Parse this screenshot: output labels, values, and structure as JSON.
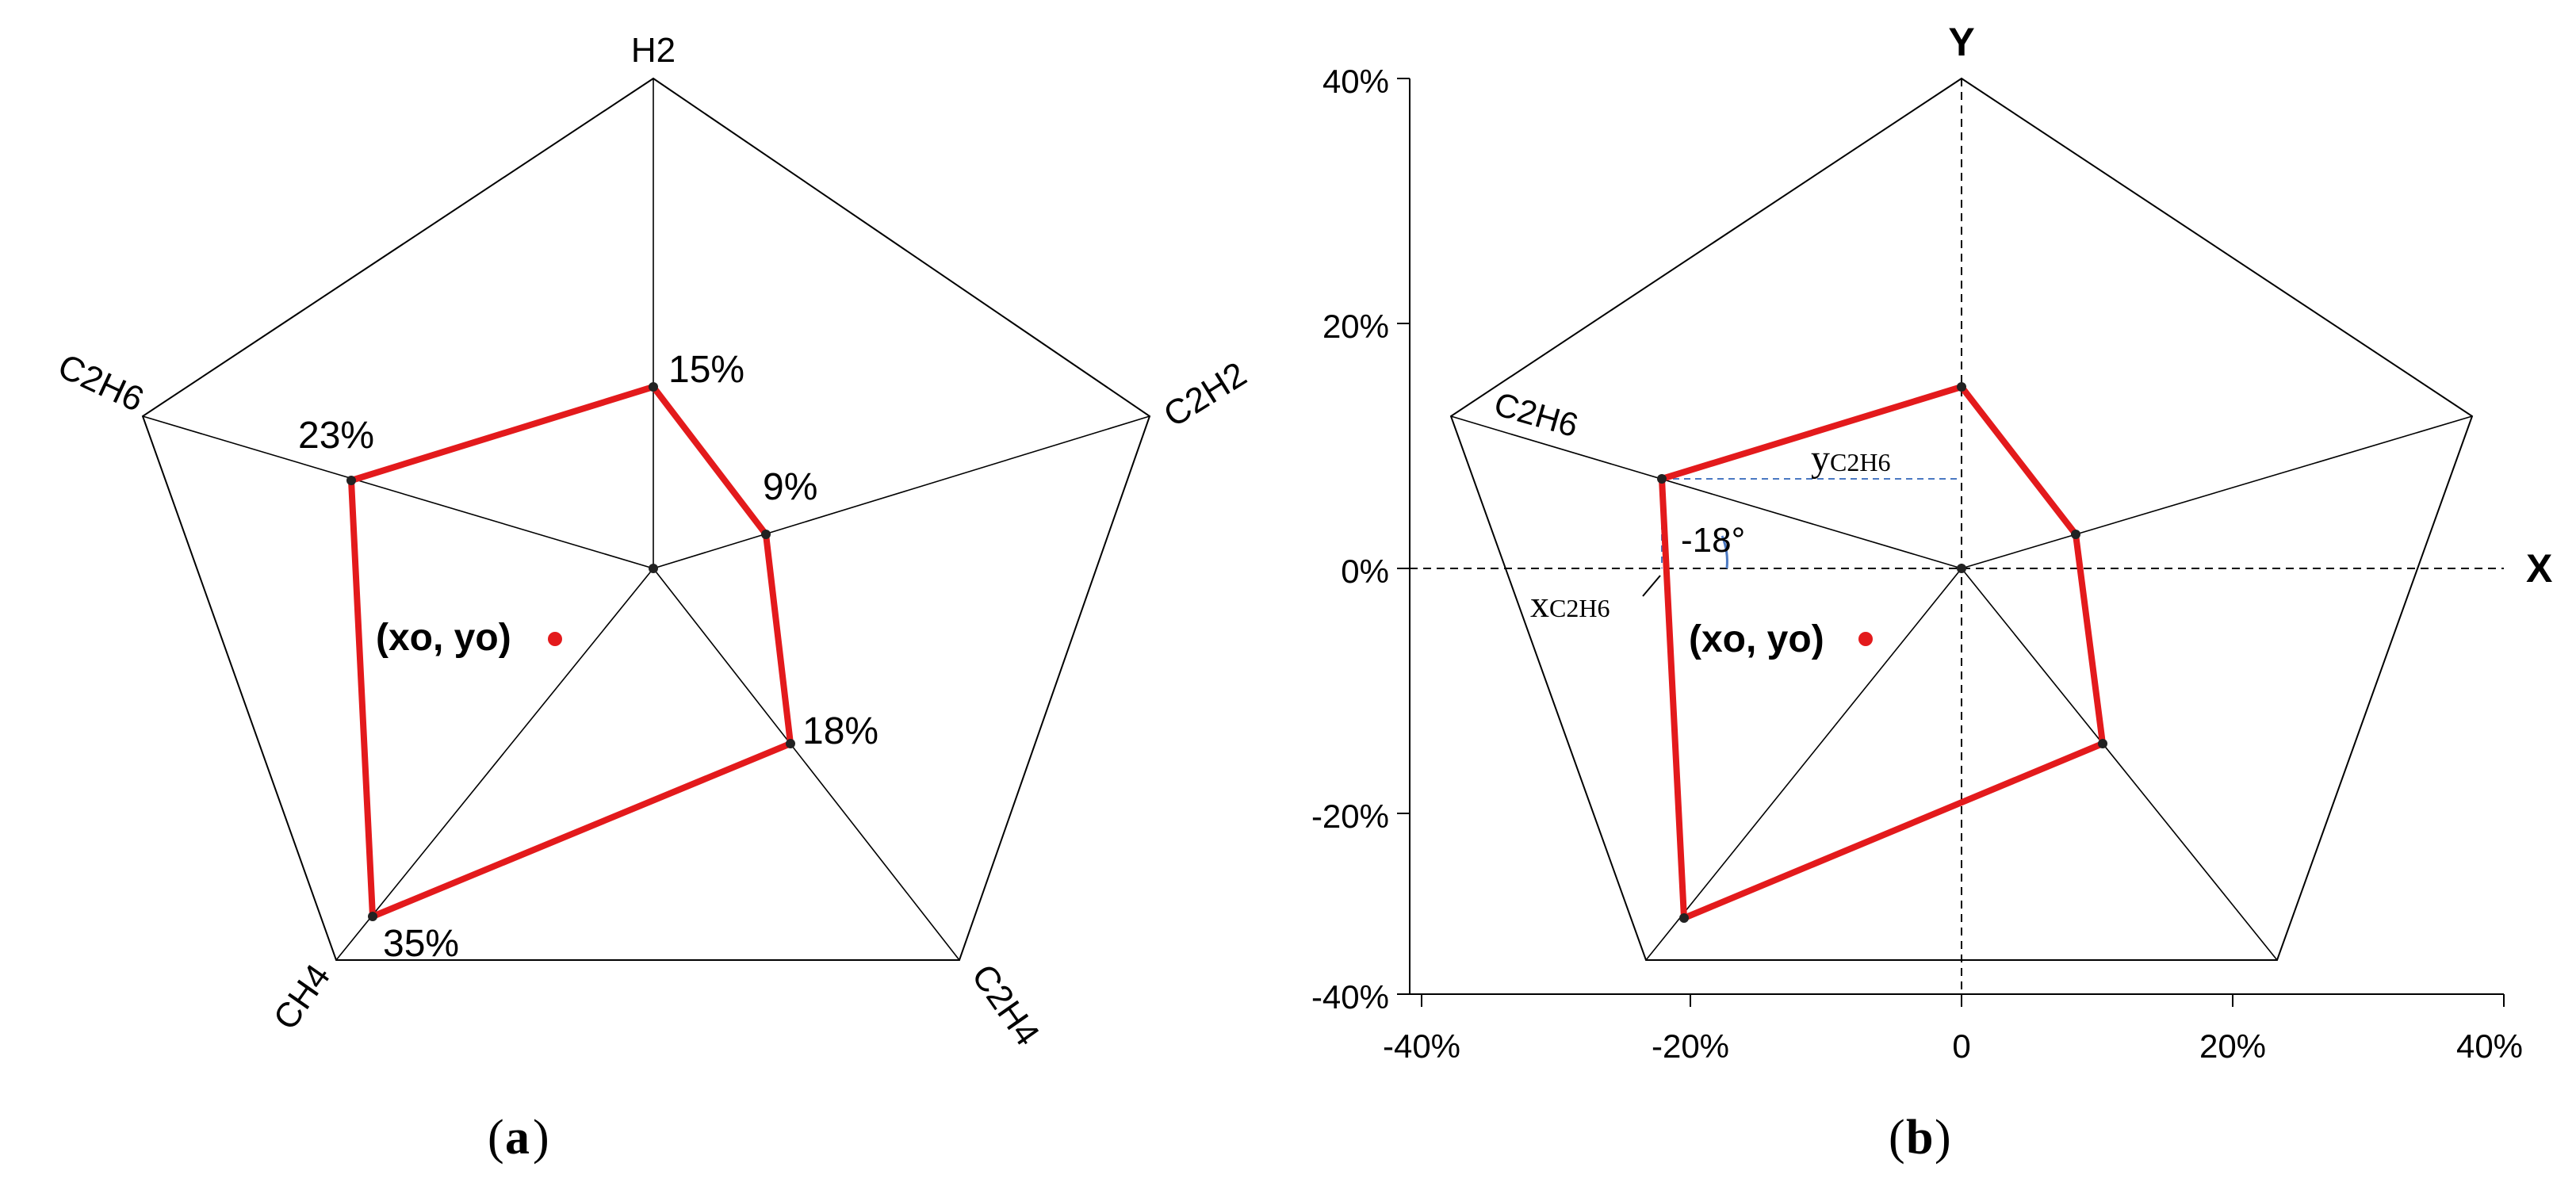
{
  "panel_a": {
    "caption_label": "a",
    "axes": [
      "H2",
      "C2H2",
      "C2H4",
      "CH4",
      "C2H6"
    ],
    "values": [
      "15%",
      "9%",
      "18%",
      "35%",
      "23%"
    ],
    "centroid_label": "(xo, yo)"
  },
  "panel_b": {
    "caption_label": "b",
    "x_axis_label": "X",
    "y_axis_label": "Y",
    "x_ticks": [
      "-40%",
      "-20%",
      "0",
      "20%",
      "40%"
    ],
    "y_ticks": [
      "40%",
      "20%",
      "0%",
      "-20%",
      "-40%"
    ],
    "axis_label_c2h6": "C2H6",
    "y_projection_label": "y",
    "y_projection_sub": "C2H6",
    "x_projection_label": "x",
    "x_projection_sub": "C2H6",
    "angle_label": "-18°",
    "centroid_label": "(xo, yo)"
  },
  "colors": {
    "polygon": "#e31a1c",
    "guide": "#4a78c2",
    "centroid": "#e31a1c"
  }
}
